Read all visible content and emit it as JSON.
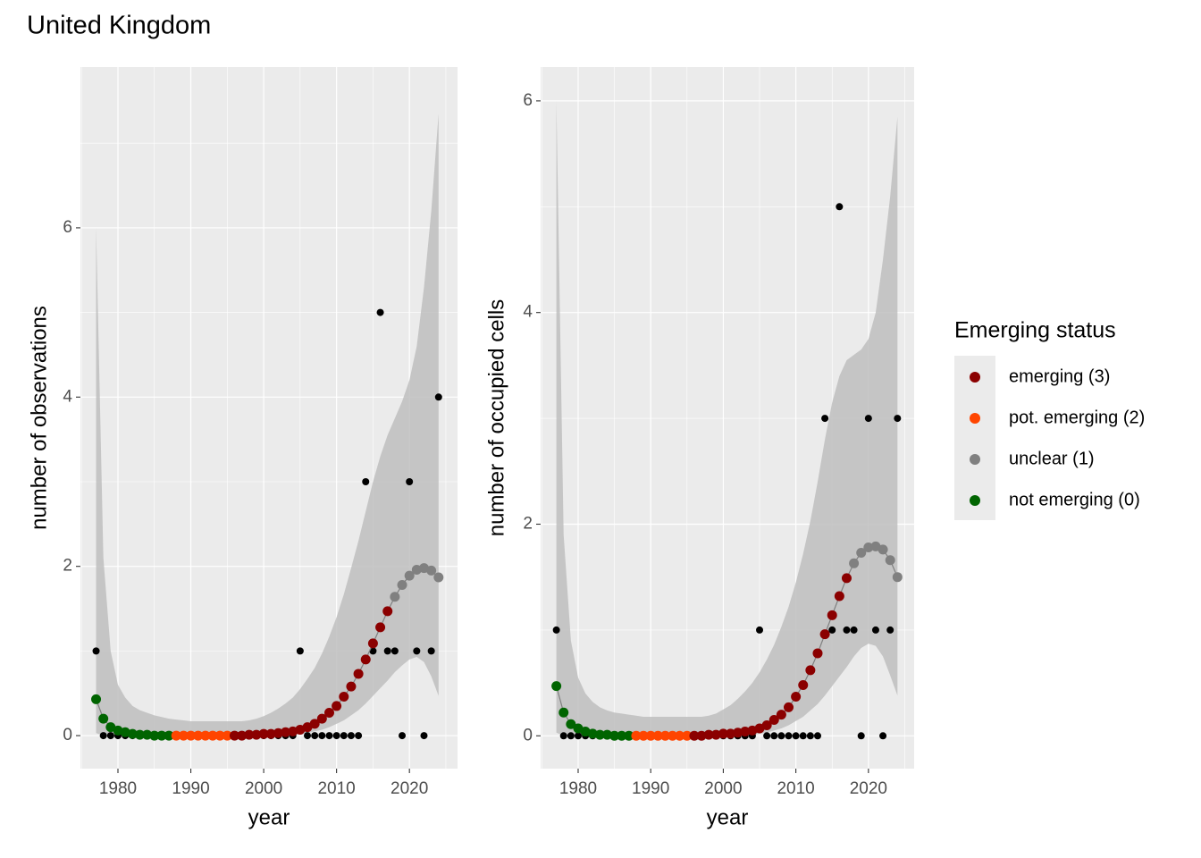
{
  "title": "United Kingdom",
  "legend": {
    "title": "Emerging status",
    "items": [
      {
        "name": "emerging (3)",
        "color": "#8b0000"
      },
      {
        "name": "pot. emerging (2)",
        "color": "#ff4500"
      },
      {
        "name": "unclear (1)",
        "color": "#808080"
      },
      {
        "name": "not emerging (0)",
        "color": "#006400"
      }
    ]
  },
  "chart_data": [
    {
      "type": "scatter",
      "xlabel": "year",
      "ylabel": "number of observations",
      "xlim": [
        1974.85,
        2026.6
      ],
      "ylim": [
        -0.39,
        7.9
      ],
      "xticks": [
        1980,
        1990,
        2000,
        2010,
        2020
      ],
      "yticks": [
        0,
        2,
        4,
        6
      ],
      "grid": true,
      "point_color": "#000000",
      "ribbon_color": "#bebebe",
      "line_color": "#7f7f7f",
      "x": [
        1977,
        1978,
        1979,
        1980,
        1981,
        1982,
        1983,
        1984,
        1985,
        1986,
        1987,
        1988,
        1989,
        1990,
        1991,
        1992,
        1993,
        1994,
        1995,
        1996,
        1997,
        1998,
        1999,
        2000,
        2001,
        2002,
        2003,
        2004,
        2005,
        2006,
        2007,
        2008,
        2009,
        2010,
        2011,
        2012,
        2013,
        2014,
        2015,
        2016,
        2017,
        2018,
        2019,
        2020,
        2021,
        2022,
        2023,
        2024
      ],
      "points": [
        1,
        0,
        0,
        0,
        0,
        0,
        0,
        0,
        0,
        0,
        0,
        0,
        0,
        0,
        0,
        0,
        0,
        0,
        0,
        0,
        0,
        0,
        0,
        0,
        0,
        0,
        0,
        0,
        1,
        0,
        0,
        0,
        0,
        0,
        0,
        0,
        0,
        3,
        1,
        5,
        1,
        1,
        0,
        3,
        1,
        0,
        1,
        4
      ],
      "fit": [
        0.43,
        0.2,
        0.1,
        0.06,
        0.04,
        0.02,
        0.01,
        0.01,
        0,
        0,
        0,
        0,
        0,
        0,
        0,
        0,
        0,
        0,
        0,
        0,
        0,
        0.01,
        0.01,
        0.02,
        0.02,
        0.03,
        0.04,
        0.05,
        0.07,
        0.1,
        0.14,
        0.2,
        0.27,
        0.35,
        0.46,
        0.58,
        0.73,
        0.9,
        1.09,
        1.28,
        1.47,
        1.64,
        1.78,
        1.89,
        1.96,
        1.98,
        1.95,
        1.87
      ],
      "upper": [
        6.0,
        2.1,
        1.0,
        0.6,
        0.45,
        0.35,
        0.3,
        0.27,
        0.24,
        0.22,
        0.2,
        0.19,
        0.18,
        0.17,
        0.17,
        0.17,
        0.17,
        0.17,
        0.17,
        0.17,
        0.17,
        0.18,
        0.2,
        0.23,
        0.27,
        0.32,
        0.38,
        0.45,
        0.55,
        0.67,
        0.8,
        0.97,
        1.17,
        1.4,
        1.67,
        1.98,
        2.3,
        2.65,
        3.0,
        3.3,
        3.55,
        3.75,
        3.95,
        4.2,
        4.6,
        5.3,
        6.2,
        7.35
      ],
      "lower": [
        0.03,
        0,
        0,
        0,
        0,
        0,
        0,
        0,
        0,
        0,
        0,
        0,
        0,
        0,
        0,
        0,
        0,
        0,
        0,
        0,
        0,
        0,
        0,
        0,
        0,
        0,
        0,
        0.01,
        0.02,
        0.03,
        0.05,
        0.07,
        0.1,
        0.14,
        0.18,
        0.24,
        0.3,
        0.38,
        0.47,
        0.56,
        0.65,
        0.75,
        0.83,
        0.9,
        0.93,
        0.87,
        0.7,
        0.47
      ],
      "status": [
        "not emerging (0)",
        "not emerging (0)",
        "not emerging (0)",
        "not emerging (0)",
        "not emerging (0)",
        "not emerging (0)",
        "not emerging (0)",
        "not emerging (0)",
        "not emerging (0)",
        "not emerging (0)",
        "not emerging (0)",
        "pot. emerging (2)",
        "pot. emerging (2)",
        "pot. emerging (2)",
        "pot. emerging (2)",
        "pot. emerging (2)",
        "pot. emerging (2)",
        "pot. emerging (2)",
        "pot. emerging (2)",
        "emerging (3)",
        "emerging (3)",
        "emerging (3)",
        "emerging (3)",
        "emerging (3)",
        "emerging (3)",
        "emerging (3)",
        "emerging (3)",
        "emerging (3)",
        "emerging (3)",
        "emerging (3)",
        "emerging (3)",
        "emerging (3)",
        "emerging (3)",
        "emerging (3)",
        "emerging (3)",
        "emerging (3)",
        "emerging (3)",
        "emerging (3)",
        "emerging (3)",
        "emerging (3)",
        "emerging (3)",
        "unclear (1)",
        "unclear (1)",
        "unclear (1)",
        "unclear (1)",
        "unclear (1)",
        "unclear (1)",
        "unclear (1)"
      ]
    },
    {
      "type": "scatter",
      "xlabel": "year",
      "ylabel": "number of occupied cells",
      "xlim": [
        1974.83,
        2026.3
      ],
      "ylim": [
        -0.31,
        6.32
      ],
      "xticks": [
        1980,
        1990,
        2000,
        2010,
        2020
      ],
      "yticks": [
        0,
        2,
        4,
        6
      ],
      "grid": true,
      "point_color": "#000000",
      "ribbon_color": "#bebebe",
      "line_color": "#7f7f7f",
      "x": [
        1977,
        1978,
        1979,
        1980,
        1981,
        1982,
        1983,
        1984,
        1985,
        1986,
        1987,
        1988,
        1989,
        1990,
        1991,
        1992,
        1993,
        1994,
        1995,
        1996,
        1997,
        1998,
        1999,
        2000,
        2001,
        2002,
        2003,
        2004,
        2005,
        2006,
        2007,
        2008,
        2009,
        2010,
        2011,
        2012,
        2013,
        2014,
        2015,
        2016,
        2017,
        2018,
        2019,
        2020,
        2021,
        2022,
        2023,
        2024
      ],
      "points": [
        1,
        0,
        0,
        0,
        0,
        0,
        0,
        0,
        0,
        0,
        0,
        0,
        0,
        0,
        0,
        0,
        0,
        0,
        0,
        0,
        0,
        0,
        0,
        0,
        0,
        0,
        0,
        0,
        1,
        0,
        0,
        0,
        0,
        0,
        0,
        0,
        0,
        3,
        1,
        5,
        1,
        1,
        0,
        3,
        1,
        0,
        1,
        3
      ],
      "fit": [
        0.47,
        0.22,
        0.11,
        0.07,
        0.04,
        0.02,
        0.01,
        0.01,
        0,
        0,
        0,
        0,
        0,
        0,
        0,
        0,
        0,
        0,
        0,
        0,
        0,
        0.01,
        0.01,
        0.02,
        0.02,
        0.03,
        0.04,
        0.05,
        0.07,
        0.1,
        0.15,
        0.2,
        0.27,
        0.37,
        0.48,
        0.62,
        0.78,
        0.96,
        1.14,
        1.32,
        1.49,
        1.63,
        1.73,
        1.78,
        1.79,
        1.76,
        1.66,
        1.5
      ],
      "upper": [
        6.0,
        1.9,
        0.9,
        0.55,
        0.4,
        0.32,
        0.27,
        0.24,
        0.22,
        0.21,
        0.2,
        0.19,
        0.18,
        0.18,
        0.18,
        0.18,
        0.18,
        0.18,
        0.18,
        0.18,
        0.18,
        0.19,
        0.21,
        0.25,
        0.29,
        0.35,
        0.42,
        0.5,
        0.6,
        0.72,
        0.86,
        1.03,
        1.22,
        1.45,
        1.72,
        2.03,
        2.4,
        2.8,
        3.15,
        3.4,
        3.55,
        3.6,
        3.65,
        3.75,
        4.0,
        4.5,
        5.1,
        5.85
      ],
      "lower": [
        0.03,
        0,
        0,
        0,
        0,
        0,
        0,
        0,
        0,
        0,
        0,
        0,
        0,
        0,
        0,
        0,
        0,
        0,
        0,
        0,
        0,
        0,
        0,
        0,
        0,
        0,
        0,
        0.01,
        0.02,
        0.03,
        0.05,
        0.07,
        0.1,
        0.14,
        0.18,
        0.24,
        0.3,
        0.38,
        0.47,
        0.56,
        0.65,
        0.75,
        0.83,
        0.87,
        0.85,
        0.75,
        0.57,
        0.38
      ],
      "status": [
        "not emerging (0)",
        "not emerging (0)",
        "not emerging (0)",
        "not emerging (0)",
        "not emerging (0)",
        "not emerging (0)",
        "not emerging (0)",
        "not emerging (0)",
        "not emerging (0)",
        "not emerging (0)",
        "not emerging (0)",
        "pot. emerging (2)",
        "pot. emerging (2)",
        "pot. emerging (2)",
        "pot. emerging (2)",
        "pot. emerging (2)",
        "pot. emerging (2)",
        "pot. emerging (2)",
        "pot. emerging (2)",
        "emerging (3)",
        "emerging (3)",
        "emerging (3)",
        "emerging (3)",
        "emerging (3)",
        "emerging (3)",
        "emerging (3)",
        "emerging (3)",
        "emerging (3)",
        "emerging (3)",
        "emerging (3)",
        "emerging (3)",
        "emerging (3)",
        "emerging (3)",
        "emerging (3)",
        "emerging (3)",
        "emerging (3)",
        "emerging (3)",
        "emerging (3)",
        "emerging (3)",
        "emerging (3)",
        "emerging (3)",
        "unclear (1)",
        "unclear (1)",
        "unclear (1)",
        "unclear (1)",
        "unclear (1)",
        "unclear (1)",
        "unclear (1)"
      ]
    }
  ]
}
